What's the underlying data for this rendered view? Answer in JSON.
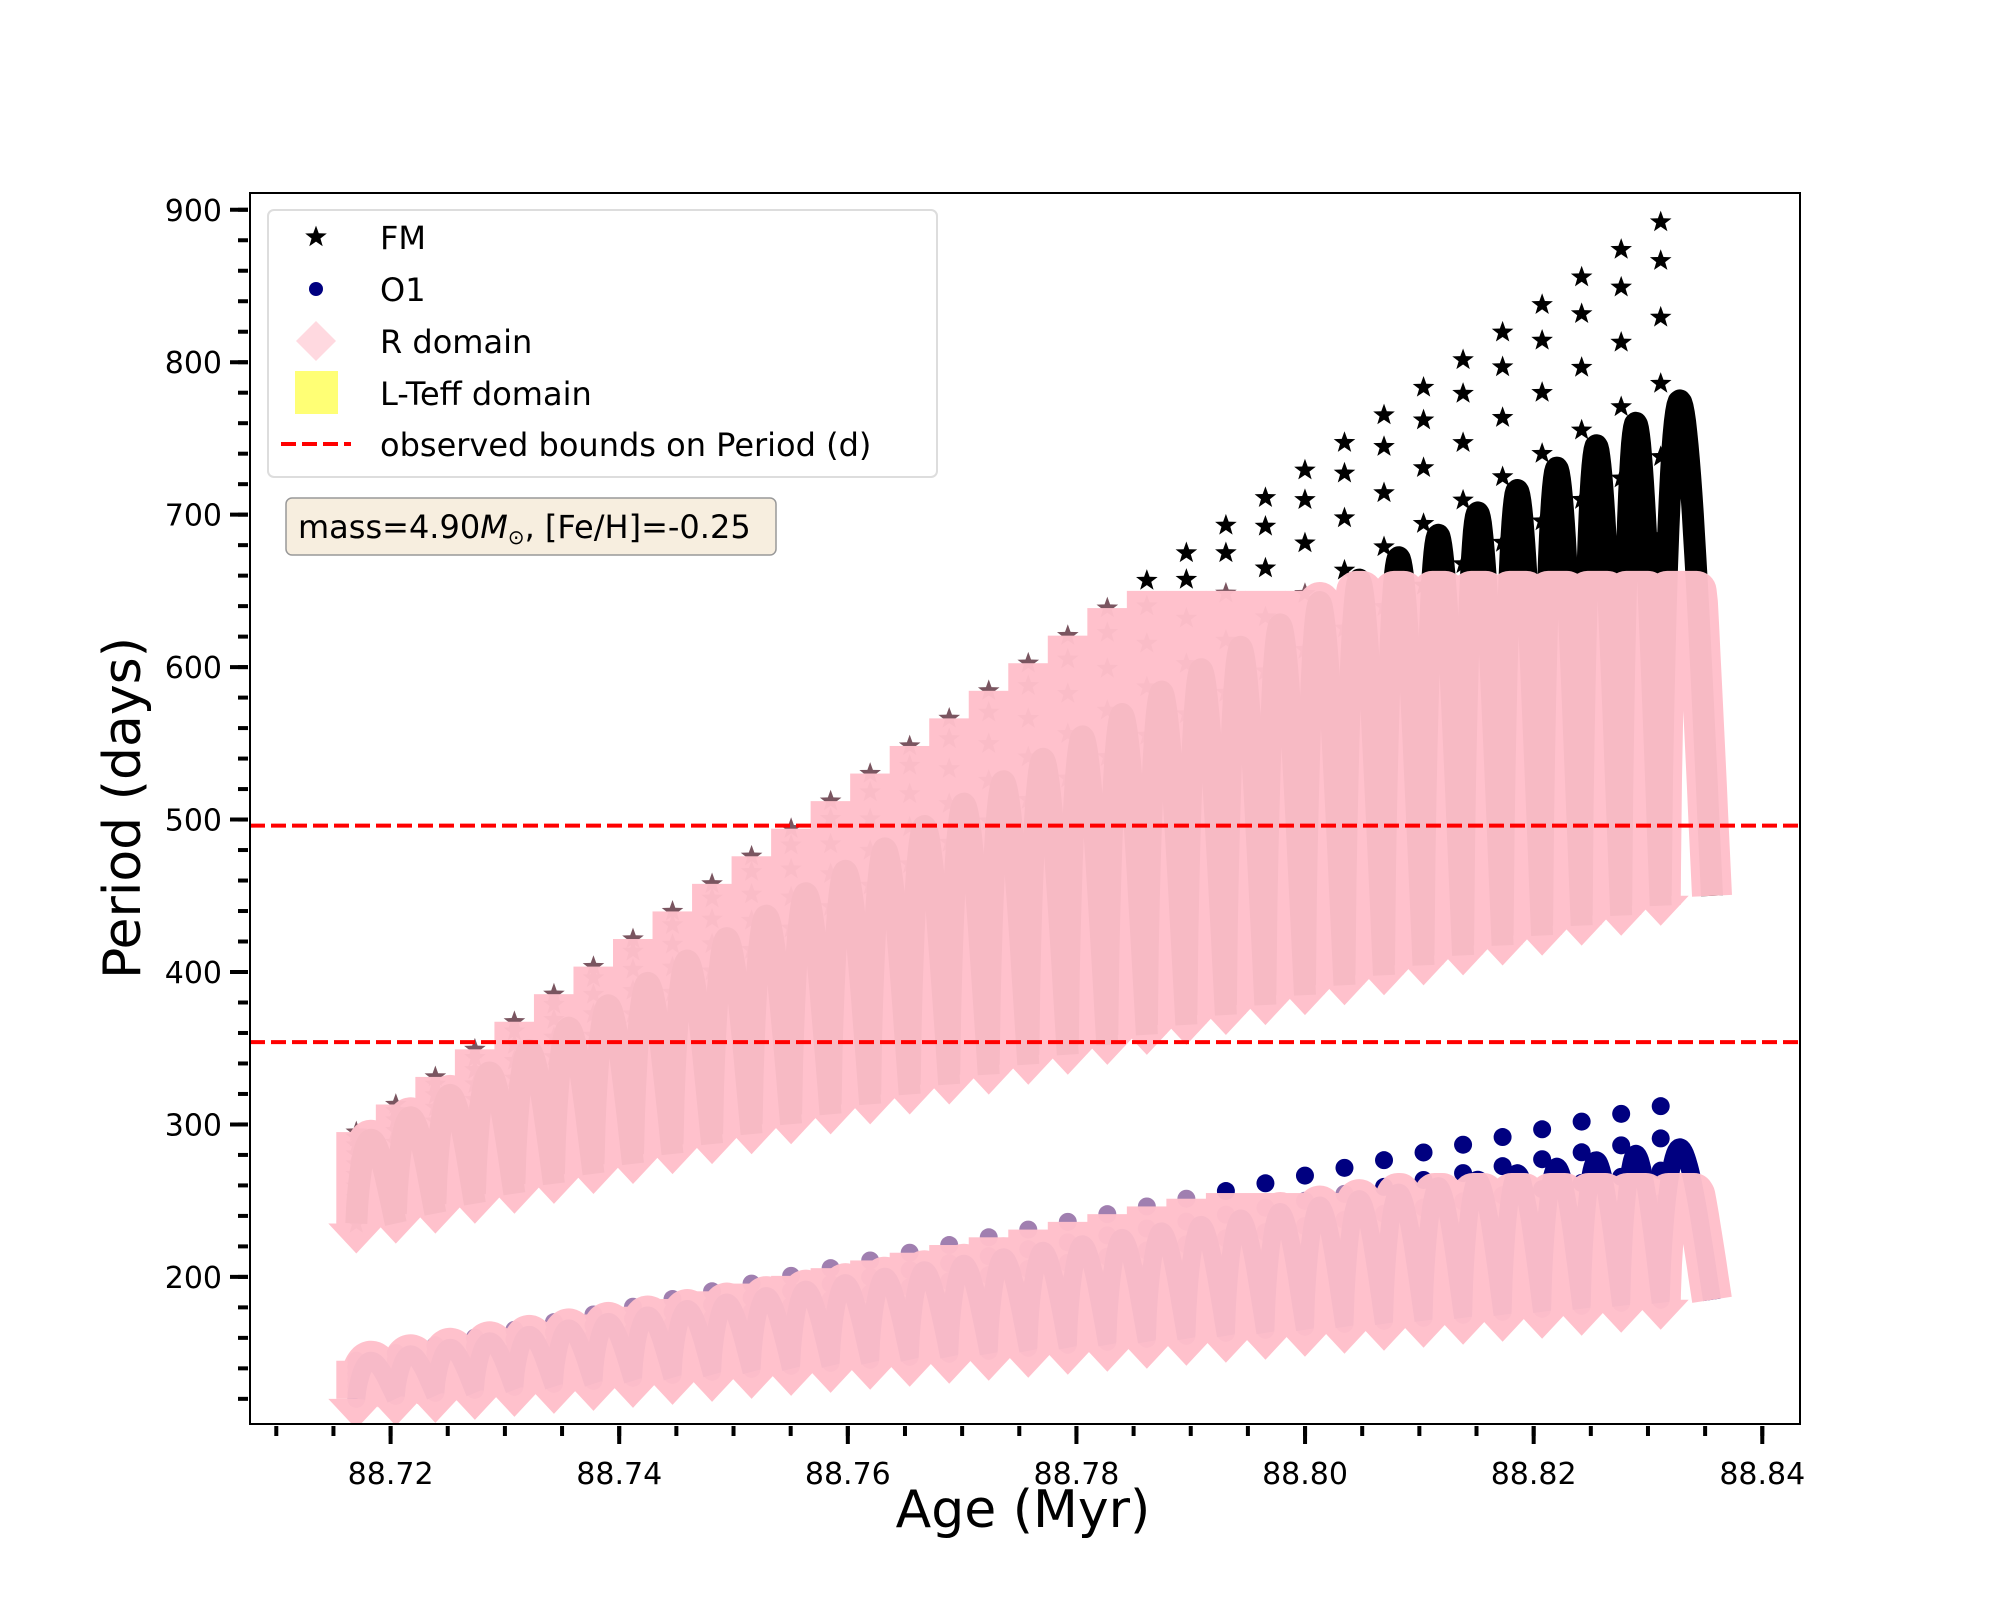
{
  "chart_data": {
    "type": "scatter",
    "title": "",
    "xlabel": "Age (Myr)",
    "ylabel": "Period (days)",
    "xlim": [
      88.7077,
      88.8433
    ],
    "ylim": [
      103.5,
      911
    ],
    "grid": false,
    "x_ticks": [
      88.72,
      88.74,
      88.76,
      88.78,
      88.8,
      88.82,
      88.84
    ],
    "x_tick_labels": [
      "88.72",
      "88.74",
      "88.76",
      "88.78",
      "88.80",
      "88.82",
      "88.84"
    ],
    "x_minor_step": 0.005,
    "y_ticks": [
      200,
      300,
      400,
      500,
      600,
      700,
      800,
      900
    ],
    "y_tick_labels": [
      "200",
      "300",
      "400",
      "500",
      "600",
      "700",
      "800",
      "900"
    ],
    "y_minor_step": 20,
    "legend": {
      "placement": "upper-left",
      "entries": [
        {
          "label": "FM",
          "marker": "star",
          "color": "#000000"
        },
        {
          "label": "O1",
          "marker": "circle",
          "color": "#000080"
        },
        {
          "label": "R domain",
          "marker": "diamond",
          "color": "#ffc0cb"
        },
        {
          "label": "L-Teff domain",
          "marker": "square",
          "color": "#ffff66"
        },
        {
          "label": "observed bounds on Period (d)",
          "marker": "dashed-line",
          "color": "#ff0000"
        }
      ]
    },
    "annotation": {
      "text_prefix": "mass=4.90",
      "text_symbol": "M",
      "text_sub": "⊙",
      "text_suffix": ", [Fe/H]=-0.25",
      "box_color": "#f7eedf"
    },
    "observed_bounds": [
      354,
      496
    ],
    "colors": {
      "fm": "#000000",
      "o1": "#000080",
      "r_domain": "#ffc0cb",
      "bounds": "#ff0000"
    },
    "loops": {
      "count": 34,
      "age_start": 88.717,
      "age_step": 0.003458,
      "last_curve_end_age": 88.8356,
      "fm": {
        "curve_bottom": [
          235,
          450
        ],
        "curve_top": [
          290,
          775
        ],
        "star_column_top": [
          295,
          892
        ],
        "r_domain_max": 650
      },
      "o1": {
        "curve_bottom": [
          120,
          185
        ],
        "curve_top": [
          145,
          285
        ],
        "dot_column_top": [
          145,
          312
        ],
        "r_domain_max": 255
      }
    }
  }
}
